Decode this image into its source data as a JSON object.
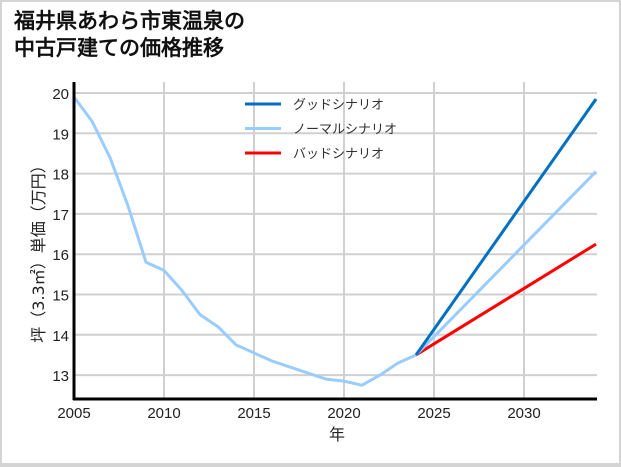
{
  "title_line1": "福井県あわら市東温泉の",
  "title_line2": "中古戸建ての価格推移",
  "chart_data": {
    "type": "line",
    "title": "福井県あわら市東温泉の中古戸建ての価格推移",
    "xlabel": "年",
    "ylabel": "坪（3.3㎡）単価（万円）",
    "xlim": [
      2005,
      2034
    ],
    "ylim": [
      12.4,
      20.3
    ],
    "xticks": [
      2005,
      2010,
      2015,
      2020,
      2025,
      2030
    ],
    "yticks": [
      13,
      14,
      15,
      16,
      17,
      18,
      19,
      20
    ],
    "grid": true,
    "legend_position": "upper center",
    "historical": {
      "x": [
        2005,
        2006,
        2007,
        2008,
        2009,
        2010,
        2011,
        2012,
        2013,
        2014,
        2015,
        2016,
        2017,
        2018,
        2019,
        2020,
        2021,
        2022,
        2023,
        2024
      ],
      "y": [
        19.9,
        19.3,
        18.4,
        17.2,
        15.8,
        15.6,
        15.1,
        14.5,
        14.2,
        13.75,
        13.55,
        13.35,
        13.2,
        13.05,
        12.9,
        12.85,
        12.75,
        13.0,
        13.3,
        13.5
      ]
    },
    "series": [
      {
        "name": "グッドシナリオ",
        "color": "#0070c0",
        "x": [
          2024,
          2034
        ],
        "values": [
          13.5,
          19.85
        ]
      },
      {
        "name": "ノーマルシナリオ",
        "color": "#99ccff",
        "x": [
          2024,
          2034
        ],
        "values": [
          13.5,
          18.05
        ]
      },
      {
        "name": "バッドシナリオ",
        "color": "#ff0000",
        "x": [
          2024,
          2034
        ],
        "values": [
          13.5,
          16.25
        ]
      }
    ],
    "historical_color": "#99ccff"
  }
}
